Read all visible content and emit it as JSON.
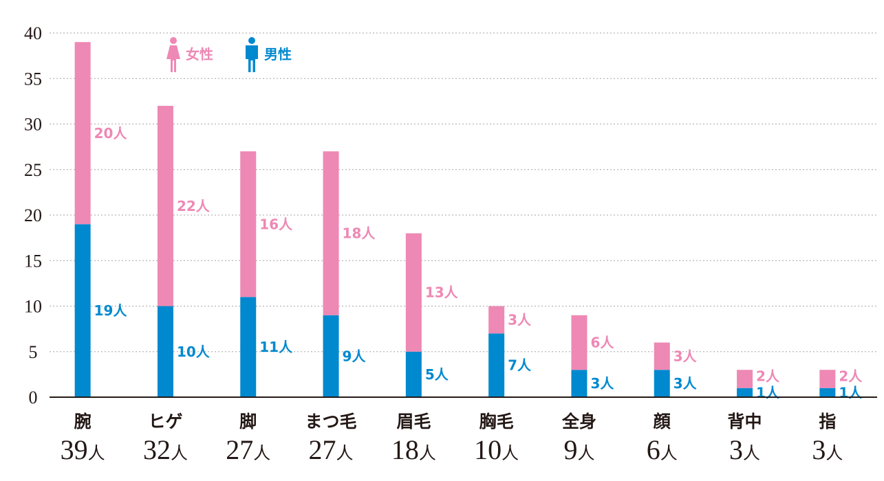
{
  "chart_data": {
    "type": "bar",
    "stacked": true,
    "categories": [
      "腕",
      "ヒゲ",
      "脚",
      "まつ毛",
      "眉毛",
      "胸毛",
      "全身",
      "顔",
      "背中",
      "指"
    ],
    "totals": [
      "39人",
      "32人",
      "27人",
      "27人",
      "18人",
      "10人",
      "9人",
      "6人",
      "3人",
      "3人"
    ],
    "series": [
      {
        "name": "男性",
        "color": "#0089cf",
        "values": [
          19,
          10,
          11,
          9,
          5,
          7,
          3,
          3,
          1,
          1
        ],
        "labels": [
          "19人",
          "10人",
          "11人",
          "9人",
          "5人",
          "7人",
          "3人",
          "3人",
          "1人",
          "1人"
        ]
      },
      {
        "name": "女性",
        "color": "#ee88b4",
        "values": [
          20,
          22,
          16,
          18,
          13,
          3,
          6,
          3,
          2,
          2
        ],
        "labels": [
          "20人",
          "22人",
          "16人",
          "18人",
          "13人",
          "3人",
          "6人",
          "3人",
          "2人",
          "2人"
        ]
      }
    ],
    "ylim": [
      0,
      40
    ],
    "yticks": [
      "0",
      "5",
      "10",
      "15",
      "20",
      "25",
      "30",
      "35",
      "40"
    ],
    "grid": true,
    "legend": {
      "position": "top-left",
      "items": [
        {
          "label": "女性",
          "icon": "female-icon",
          "color": "#ee88b4"
        },
        {
          "label": "男性",
          "icon": "male-icon",
          "color": "#0089cf"
        }
      ]
    },
    "title": "",
    "xlabel": "",
    "ylabel": ""
  }
}
